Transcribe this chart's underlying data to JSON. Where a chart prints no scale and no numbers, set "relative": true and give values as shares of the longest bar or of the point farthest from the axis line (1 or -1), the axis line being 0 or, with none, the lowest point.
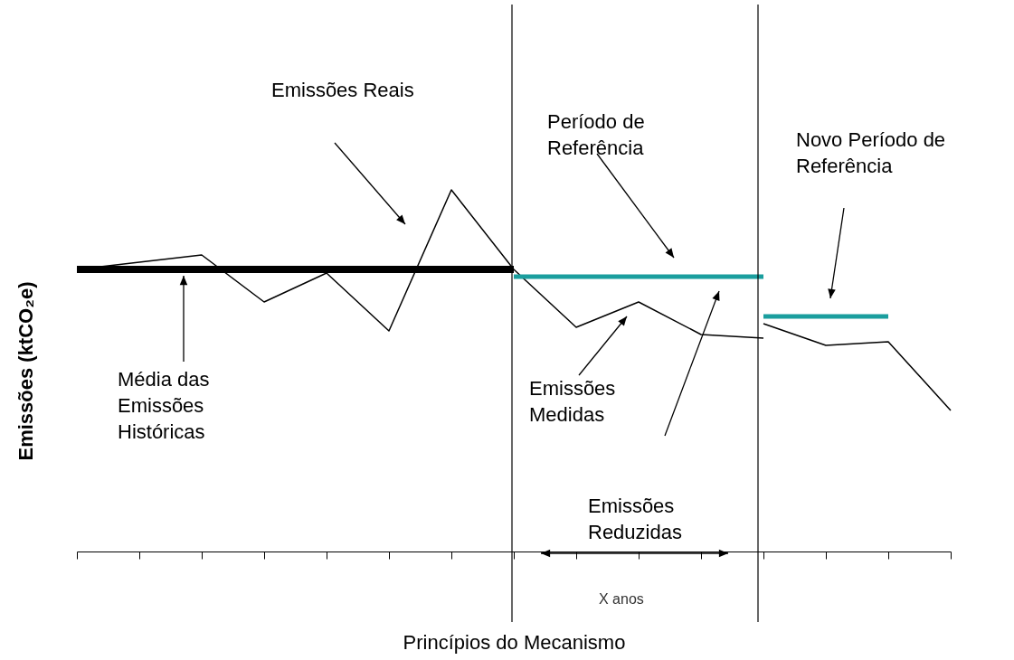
{
  "chart_data": {
    "type": "line",
    "relative": true,
    "xlabel": "Princípios do Mecanismo",
    "ylabel": "Emissões (ktCO₂e)",
    "categories": [
      null,
      null,
      null,
      null,
      null,
      null,
      null,
      null,
      null,
      null,
      null,
      null,
      null,
      null,
      null
    ],
    "series": [
      {
        "color": "#000000",
        "values": [
          0.78,
          0.8,
          0.82,
          0.69,
          0.77,
          0.61,
          1.0,
          0.78,
          0.62,
          0.69,
          0.6,
          0.59,
          null,
          null,
          null
        ]
      },
      {
        "color": "#000000",
        "values": [
          null,
          null,
          null,
          null,
          null,
          null,
          null,
          null,
          null,
          null,
          null,
          0.63,
          0.57,
          0.58,
          0.39
        ]
      },
      {
        "color": "#000000",
        "values": [
          0.78,
          0.78,
          0.78,
          0.78,
          0.78,
          0.78,
          0.78,
          0.78,
          null,
          null,
          null,
          null,
          null,
          null,
          null
        ]
      },
      {
        "color": "#1a9e9e",
        "values": [
          null,
          null,
          null,
          null,
          null,
          null,
          null,
          0.76,
          0.76,
          0.76,
          0.76,
          0.76,
          null,
          null,
          null
        ]
      },
      {
        "color": "#1a9e9e",
        "values": [
          null,
          null,
          null,
          null,
          null,
          null,
          null,
          null,
          null,
          null,
          null,
          0.65,
          0.65,
          0.65,
          null
        ]
      }
    ],
    "annotations": [
      "Emissões Reais",
      "Período de\nReferência",
      "Novo Período de\nReferência",
      "Média das\nEmissões\nHistóricas",
      "Emissões\nMedidas",
      "Emissões\nReduzidas",
      "X anos"
    ],
    "grid": false,
    "marker": "none",
    "line_style": "solid"
  }
}
